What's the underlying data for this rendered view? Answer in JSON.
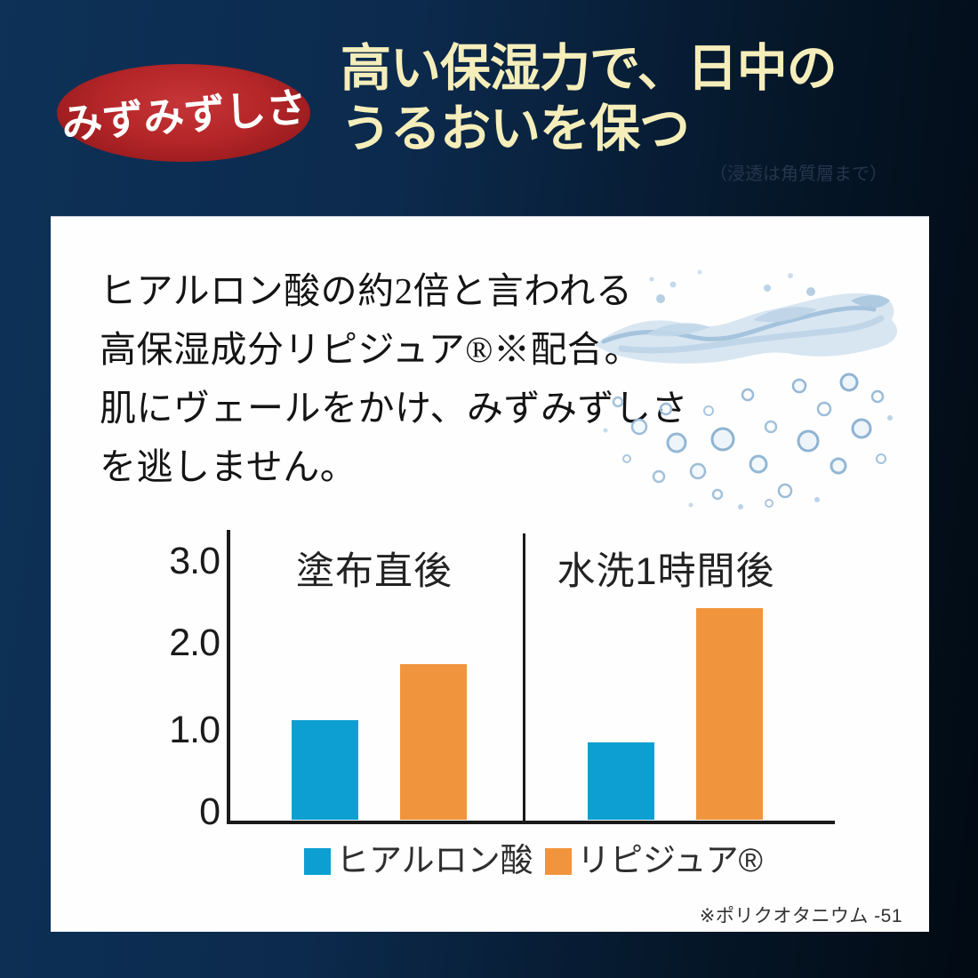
{
  "header": {
    "badge": "みずみずしさ",
    "title_line1": "高い保湿力で、日中の",
    "title_line2": "うるおいを保つ",
    "note": "（浸透は角質層まで）"
  },
  "card": {
    "paragraph_lines": [
      "ヒアルロン酸の約2倍と言われる",
      "高保湿成分リピジュア®※配合。",
      "肌にヴェールをかけ、みずみずしさ",
      "を逃しません。"
    ],
    "footnote": "※ポリクオタニウム -51"
  },
  "chart_data": {
    "type": "bar",
    "categories": [
      "塗布直後",
      "水洗1時間後"
    ],
    "series": [
      {
        "name": "ヒアルロン酸",
        "color": "#0d9fd1",
        "values": [
          1.15,
          0.9
        ]
      },
      {
        "name": "リピジュア®",
        "color": "#f0953d",
        "values": [
          1.8,
          2.45
        ]
      }
    ],
    "ytick_labels": [
      "3.0",
      "2.0",
      "1.0",
      "0"
    ],
    "yticks": [
      3.0,
      2.0,
      1.0,
      0
    ],
    "ylim": [
      0,
      3.35
    ],
    "grid": false,
    "legend_position": "bottom"
  },
  "colors": {
    "accent_blue": "#0d9fd1",
    "accent_orange": "#f0953d",
    "badge_red": "#b02226",
    "heading_yellow": "#f5eeba",
    "background_navy": "#0c2a4d"
  }
}
